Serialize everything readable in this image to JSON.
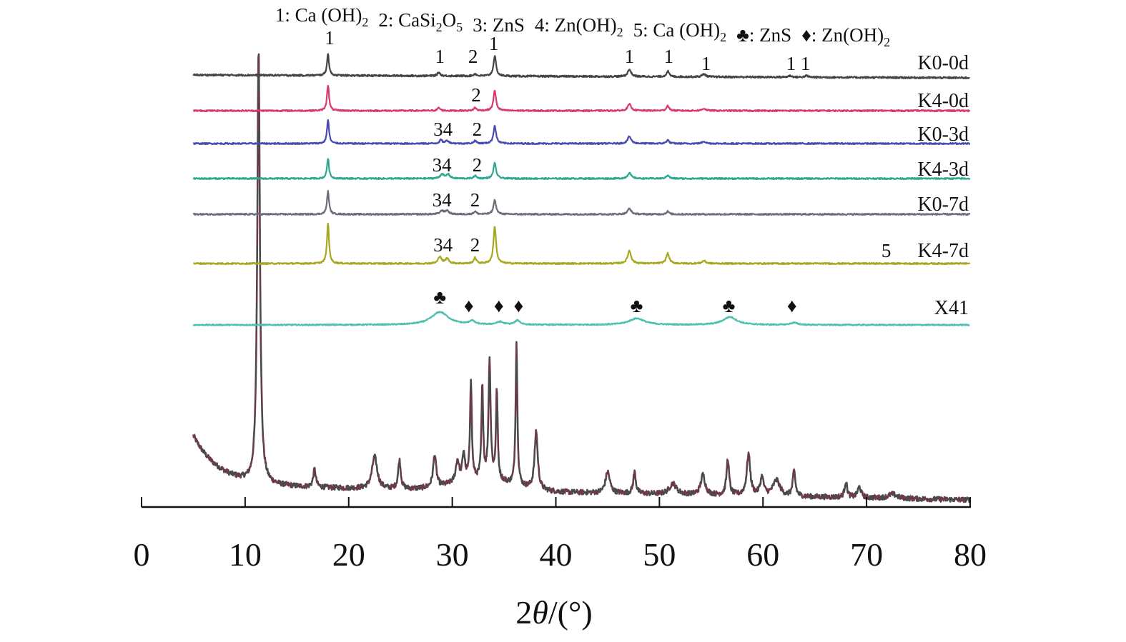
{
  "chart_data": {
    "type": "line",
    "title": "",
    "legend": [
      {
        "text": "1: Ca (OH)",
        "sub": "2",
        "after": ""
      },
      {
        "text": "2: CaSi",
        "sub": "2",
        "after": "O",
        "sub2": "5"
      },
      {
        "text": "3: ZnS",
        "sub": "",
        "after": ""
      },
      {
        "text": "4: Zn(OH)",
        "sub": "2",
        "after": ""
      },
      {
        "text": "5: Ca (OH)",
        "sub": "2",
        "after": ""
      },
      {
        "text": "♣: ZnS",
        "sub": "",
        "after": ""
      },
      {
        "text": "♦: Zn(OH)",
        "sub": "2",
        "after": ""
      }
    ],
    "legend_placement": "top",
    "xlabel": {
      "prefix": "2",
      "theta": "θ",
      "suffix": "/(°)"
    },
    "ylabel": "",
    "xlim": [
      0,
      80
    ],
    "xticks": [
      0,
      10,
      20,
      30,
      40,
      50,
      60,
      70,
      80
    ],
    "x_range_data": [
      5,
      80
    ],
    "grid": false,
    "series": [
      {
        "name": "K0-0d",
        "color": "#444444",
        "offset": 605,
        "label_y": 613,
        "noise": 1.2,
        "tilt": -4,
        "peaks": [
          [
            18.0,
            30,
            0.12
          ],
          [
            28.7,
            5,
            0.15
          ],
          [
            32.2,
            3,
            0.15
          ],
          [
            34.1,
            28,
            0.15
          ],
          [
            47.1,
            10,
            0.2
          ],
          [
            50.8,
            8,
            0.15
          ],
          [
            54.3,
            4,
            0.2
          ],
          [
            62.6,
            2,
            0.2
          ],
          [
            64.2,
            2,
            0.2
          ]
        ]
      },
      {
        "name": "K4-0d",
        "color": "#d63a6e",
        "offset": 555,
        "label_y": 560,
        "noise": 1.0,
        "tilt": 0,
        "peaks": [
          [
            18.0,
            36,
            0.12
          ],
          [
            28.7,
            4,
            0.15
          ],
          [
            32.2,
            4,
            0.15
          ],
          [
            34.1,
            28,
            0.15
          ],
          [
            47.1,
            9,
            0.2
          ],
          [
            50.8,
            7,
            0.15
          ],
          [
            54.3,
            3,
            0.2
          ]
        ]
      },
      {
        "name": "K0-3d",
        "color": "#4a4ab4",
        "offset": 509,
        "label_y": 513,
        "noise": 1.0,
        "tilt": 0,
        "peaks": [
          [
            18.0,
            33,
            0.12
          ],
          [
            28.9,
            5,
            0.15
          ],
          [
            29.5,
            4,
            0.2
          ],
          [
            32.2,
            4,
            0.15
          ],
          [
            34.1,
            25,
            0.15
          ],
          [
            47.1,
            10,
            0.2
          ],
          [
            50.8,
            5,
            0.15
          ],
          [
            54.3,
            3,
            0.2
          ]
        ]
      },
      {
        "name": "K4-3d",
        "color": "#2fa88e",
        "offset": 460,
        "label_y": 464,
        "noise": 1.0,
        "tilt": 0,
        "peaks": [
          [
            18.0,
            28,
            0.12
          ],
          [
            29.0,
            6,
            0.2
          ],
          [
            29.6,
            6,
            0.2
          ],
          [
            32.2,
            4,
            0.15
          ],
          [
            34.1,
            22,
            0.15
          ],
          [
            47.1,
            8,
            0.2
          ],
          [
            50.8,
            5,
            0.15
          ]
        ]
      },
      {
        "name": "K0-7d",
        "color": "#6c6c7a",
        "offset": 410,
        "label_y": 415,
        "noise": 1.0,
        "tilt": 0,
        "peaks": [
          [
            18.0,
            32,
            0.12
          ],
          [
            29.0,
            5,
            0.2
          ],
          [
            29.5,
            5,
            0.2
          ],
          [
            32.2,
            4,
            0.15
          ],
          [
            34.1,
            20,
            0.15
          ],
          [
            47.1,
            8,
            0.2
          ],
          [
            50.8,
            4,
            0.15
          ]
        ]
      },
      {
        "name": "K4-7d",
        "color": "#a8a820",
        "offset": 341,
        "label_y": 350,
        "noise": 1.0,
        "tilt": 0,
        "peaks": [
          [
            18.0,
            56,
            0.12
          ],
          [
            28.8,
            10,
            0.18
          ],
          [
            29.5,
            7,
            0.2
          ],
          [
            32.2,
            8,
            0.15
          ],
          [
            34.1,
            52,
            0.15
          ],
          [
            47.1,
            18,
            0.2
          ],
          [
            50.8,
            14,
            0.18
          ],
          [
            54.3,
            4,
            0.2
          ]
        ]
      },
      {
        "name": "X41",
        "color": "#4fc0ae",
        "offset": 255,
        "label_y": 270,
        "noise": 0.8,
        "tilt": 0,
        "peaks": [
          [
            28.8,
            18,
            1.0
          ],
          [
            31.9,
            5,
            0.3
          ],
          [
            34.6,
            4,
            0.4
          ],
          [
            36.3,
            6,
            0.3
          ],
          [
            47.8,
            9,
            0.9
          ],
          [
            56.8,
            11,
            0.8
          ],
          [
            63.0,
            3,
            0.4
          ]
        ]
      },
      {
        "name": "",
        "color": "#4a4a4a",
        "color2": "#7a3548",
        "offset": 0,
        "noise": 3.5,
        "tilt": 0,
        "background": {
          "floor": 10,
          "slope": 20,
          "decay_amp": 70,
          "decay_len": 2.5,
          "hump_amp": 15,
          "hump_center": 33,
          "hump_width": 4
        },
        "peaks": [
          [
            11.3,
            610,
            0.15
          ],
          [
            16.7,
            25,
            0.15
          ],
          [
            22.5,
            45,
            0.3
          ],
          [
            24.9,
            40,
            0.15
          ],
          [
            28.3,
            45,
            0.18
          ],
          [
            30.5,
            30,
            0.2
          ],
          [
            31.1,
            38,
            0.15
          ],
          [
            31.8,
            140,
            0.1
          ],
          [
            32.9,
            128,
            0.1
          ],
          [
            33.6,
            165,
            0.12
          ],
          [
            34.3,
            125,
            0.1
          ],
          [
            36.2,
            200,
            0.1
          ],
          [
            38.1,
            82,
            0.18
          ],
          [
            45.0,
            30,
            0.25
          ],
          [
            47.6,
            30,
            0.15
          ],
          [
            51.3,
            15,
            0.4
          ],
          [
            54.2,
            28,
            0.25
          ],
          [
            56.6,
            50,
            0.15
          ],
          [
            58.6,
            58,
            0.2
          ],
          [
            59.9,
            25,
            0.2
          ],
          [
            61.3,
            22,
            0.4
          ],
          [
            63.0,
            35,
            0.15
          ],
          [
            68.0,
            22,
            0.15
          ],
          [
            69.3,
            15,
            0.2
          ],
          [
            72.5,
            6,
            0.5
          ]
        ]
      }
    ],
    "annotations": [
      {
        "text": "1",
        "x": 18.15,
        "y": 648
      },
      {
        "text": "1",
        "x": 28.8,
        "y": 622
      },
      {
        "text": "2",
        "x": 32.0,
        "y": 622
      },
      {
        "text": "1",
        "x": 34.0,
        "y": 640
      },
      {
        "text": "1",
        "x": 47.1,
        "y": 622
      },
      {
        "text": "1",
        "x": 50.9,
        "y": 622
      },
      {
        "text": "1",
        "x": 54.5,
        "y": 612
      },
      {
        "text": "1 1",
        "x": 63.4,
        "y": 612
      },
      {
        "text": "2",
        "x": 32.3,
        "y": 568
      },
      {
        "text": "34",
        "x": 29.1,
        "y": 520
      },
      {
        "text": "2",
        "x": 32.4,
        "y": 520
      },
      {
        "text": "34",
        "x": 29.0,
        "y": 470
      },
      {
        "text": "2",
        "x": 32.4,
        "y": 470
      },
      {
        "text": "34",
        "x": 29.0,
        "y": 421
      },
      {
        "text": "2",
        "x": 32.2,
        "y": 421
      },
      {
        "text": "34",
        "x": 29.1,
        "y": 358
      },
      {
        "text": "2",
        "x": 32.2,
        "y": 358
      },
      {
        "text": "5",
        "x": 71.9,
        "y": 350
      },
      {
        "text": "♣",
        "x": 28.8,
        "y": 285
      },
      {
        "text": "♦",
        "x": 31.6,
        "y": 273
      },
      {
        "text": "♦",
        "x": 34.5,
        "y": 273
      },
      {
        "text": "♦",
        "x": 36.4,
        "y": 273
      },
      {
        "text": "♣",
        "x": 47.8,
        "y": 273
      },
      {
        "text": "♣",
        "x": 56.7,
        "y": 273
      },
      {
        "text": "♦",
        "x": 62.8,
        "y": 273
      }
    ]
  }
}
